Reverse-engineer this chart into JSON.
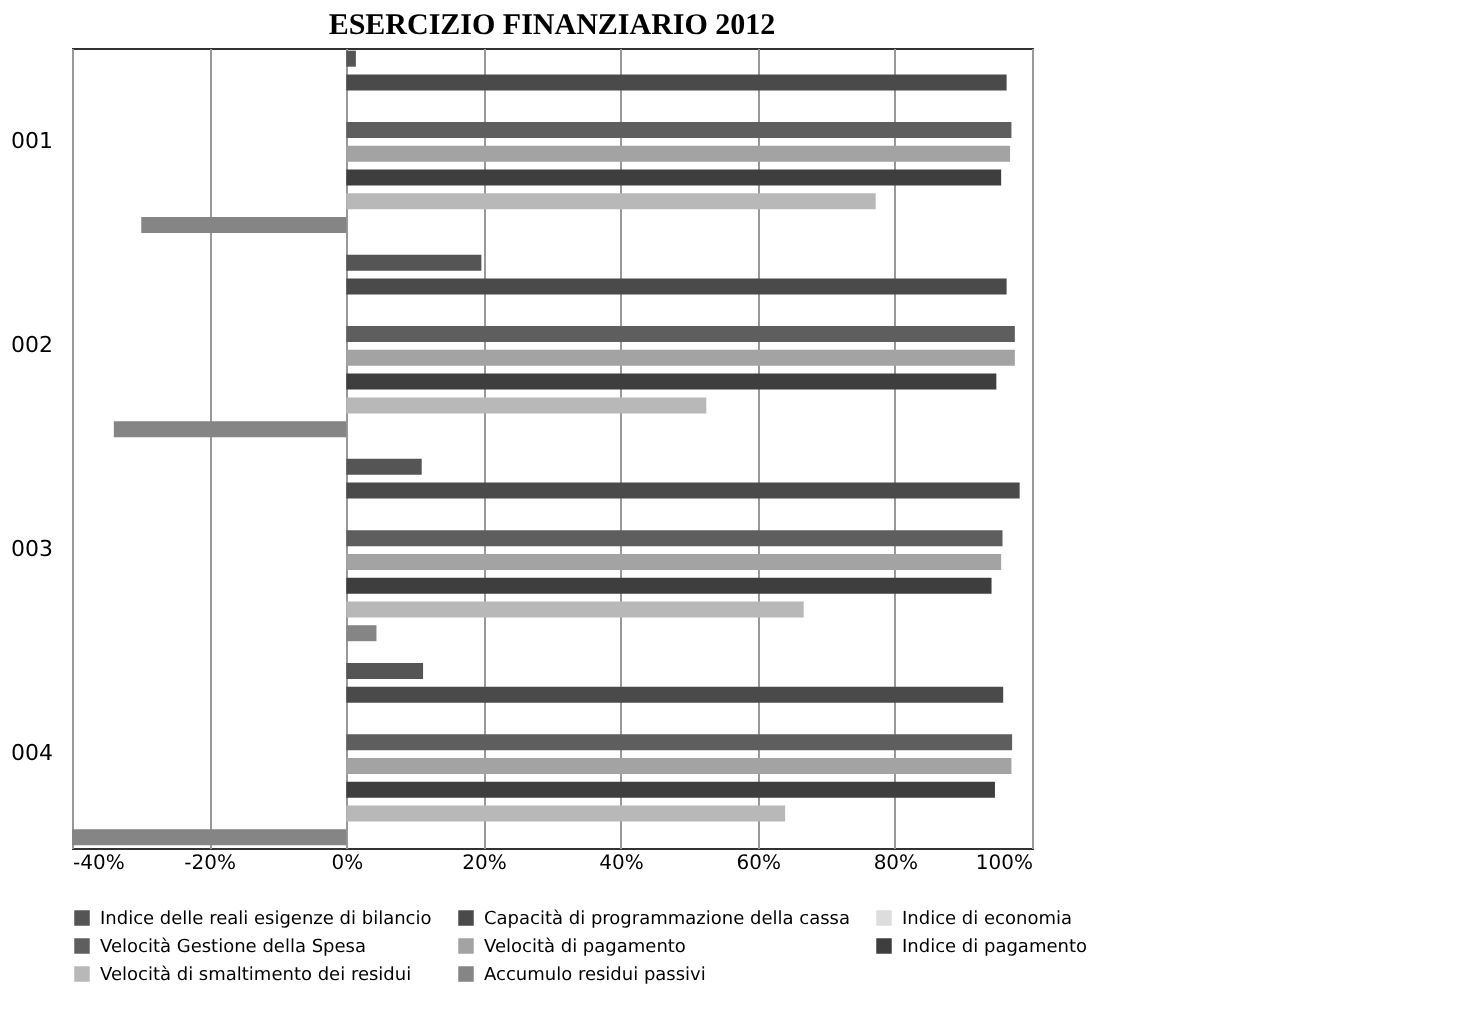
{
  "chart_data": {
    "type": "bar",
    "orientation": "horizontal",
    "title": "ESERCIZIO FINANZIARIO 2012",
    "categories": [
      "001",
      "002",
      "003",
      "004"
    ],
    "series": [
      {
        "name": "Indice delle reali esigenze di bilancio",
        "color": "#555555",
        "values": [
          1.4,
          19.7,
          11,
          11.2
        ]
      },
      {
        "name": "Capacità di programmazione della cassa",
        "color": "#4a4a4a",
        "values": [
          96.3,
          96.3,
          98.2,
          95.8
        ]
      },
      {
        "name": "Indice di economia",
        "color": "#dddddd",
        "values": [
          null,
          null,
          null,
          null
        ]
      },
      {
        "name": "Velocità Gestione della Spesa",
        "color": "#5e5e5e",
        "values": [
          97,
          97.5,
          95.7,
          97.1
        ]
      },
      {
        "name": "Velocità di pagamento",
        "color": "#a3a3a3",
        "values": [
          96.8,
          97.5,
          95.5,
          97
        ]
      },
      {
        "name": "Indice di pagamento",
        "color": "#3e3e3e",
        "values": [
          95.5,
          94.8,
          94.1,
          94.6
        ]
      },
      {
        "name": "Velocità di smaltimento dei residui",
        "color": "#b8b8b8",
        "values": [
          77.2,
          52.5,
          66.7,
          64
        ]
      },
      {
        "name": "Accumulo residui passivi",
        "color": "#858585",
        "values": [
          -29.9,
          -33.9,
          4.4,
          -40
        ]
      }
    ],
    "xlim": [
      -40,
      100
    ],
    "xticks": [
      {
        "value": -40,
        "label": "-40%"
      },
      {
        "value": -20,
        "label": "-20%"
      },
      {
        "value": 0,
        "label": "0%"
      },
      {
        "value": 20,
        "label": "20%"
      },
      {
        "value": 40,
        "label": "40%"
      },
      {
        "value": 60,
        "label": "60%"
      },
      {
        "value": 80,
        "label": "80%"
      },
      {
        "value": 100,
        "label": "100%"
      }
    ],
    "grid": "x",
    "legend": "bottom"
  }
}
